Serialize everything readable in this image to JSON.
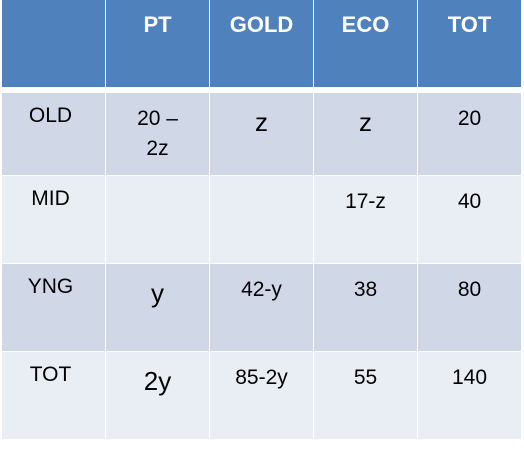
{
  "table": {
    "headers": [
      "",
      "PT",
      "GOLD",
      "ECO",
      "TOT"
    ],
    "rows": [
      {
        "label": "OLD",
        "cells": [
          "20 –\n2z",
          "z",
          "z",
          "20"
        ]
      },
      {
        "label": "MID",
        "cells": [
          "",
          "",
          "17-z",
          "40"
        ]
      },
      {
        "label": "YNG",
        "cells": [
          "y",
          "42-y",
          "38",
          "80"
        ]
      },
      {
        "label": "TOT",
        "cells": [
          "2y",
          "85-2y",
          "55",
          "140"
        ]
      }
    ]
  },
  "colors": {
    "header": "#4f81bd",
    "row_dark": "#d0d8e8",
    "row_light": "#e9edf4"
  }
}
